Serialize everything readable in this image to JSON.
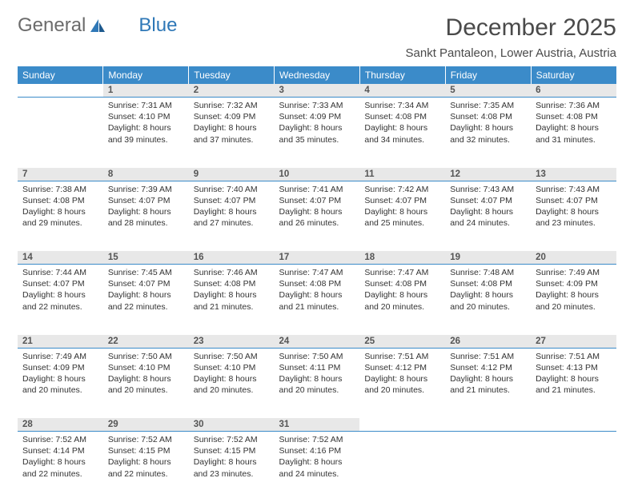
{
  "brand": {
    "part1": "General",
    "part2": "Blue"
  },
  "title": "December 2025",
  "subtitle": "Sankt Pantaleon, Lower Austria, Austria",
  "colors": {
    "header_bg": "#3b8bc9",
    "header_text": "#ffffff",
    "daynum_bg": "#e8e8e8",
    "divider": "#3b8bc9",
    "body_text": "#333333",
    "brand_gray": "#6b6b6b",
    "brand_blue": "#2f78b7"
  },
  "day_headers": [
    "Sunday",
    "Monday",
    "Tuesday",
    "Wednesday",
    "Thursday",
    "Friday",
    "Saturday"
  ],
  "weeks": [
    {
      "nums": [
        "",
        "1",
        "2",
        "3",
        "4",
        "5",
        "6"
      ],
      "cells": [
        null,
        {
          "sunrise": "Sunrise: 7:31 AM",
          "sunset": "Sunset: 4:10 PM",
          "daylight": "Daylight: 8 hours and 39 minutes."
        },
        {
          "sunrise": "Sunrise: 7:32 AM",
          "sunset": "Sunset: 4:09 PM",
          "daylight": "Daylight: 8 hours and 37 minutes."
        },
        {
          "sunrise": "Sunrise: 7:33 AM",
          "sunset": "Sunset: 4:09 PM",
          "daylight": "Daylight: 8 hours and 35 minutes."
        },
        {
          "sunrise": "Sunrise: 7:34 AM",
          "sunset": "Sunset: 4:08 PM",
          "daylight": "Daylight: 8 hours and 34 minutes."
        },
        {
          "sunrise": "Sunrise: 7:35 AM",
          "sunset": "Sunset: 4:08 PM",
          "daylight": "Daylight: 8 hours and 32 minutes."
        },
        {
          "sunrise": "Sunrise: 7:36 AM",
          "sunset": "Sunset: 4:08 PM",
          "daylight": "Daylight: 8 hours and 31 minutes."
        }
      ]
    },
    {
      "nums": [
        "7",
        "8",
        "9",
        "10",
        "11",
        "12",
        "13"
      ],
      "cells": [
        {
          "sunrise": "Sunrise: 7:38 AM",
          "sunset": "Sunset: 4:08 PM",
          "daylight": "Daylight: 8 hours and 29 minutes."
        },
        {
          "sunrise": "Sunrise: 7:39 AM",
          "sunset": "Sunset: 4:07 PM",
          "daylight": "Daylight: 8 hours and 28 minutes."
        },
        {
          "sunrise": "Sunrise: 7:40 AM",
          "sunset": "Sunset: 4:07 PM",
          "daylight": "Daylight: 8 hours and 27 minutes."
        },
        {
          "sunrise": "Sunrise: 7:41 AM",
          "sunset": "Sunset: 4:07 PM",
          "daylight": "Daylight: 8 hours and 26 minutes."
        },
        {
          "sunrise": "Sunrise: 7:42 AM",
          "sunset": "Sunset: 4:07 PM",
          "daylight": "Daylight: 8 hours and 25 minutes."
        },
        {
          "sunrise": "Sunrise: 7:43 AM",
          "sunset": "Sunset: 4:07 PM",
          "daylight": "Daylight: 8 hours and 24 minutes."
        },
        {
          "sunrise": "Sunrise: 7:43 AM",
          "sunset": "Sunset: 4:07 PM",
          "daylight": "Daylight: 8 hours and 23 minutes."
        }
      ]
    },
    {
      "nums": [
        "14",
        "15",
        "16",
        "17",
        "18",
        "19",
        "20"
      ],
      "cells": [
        {
          "sunrise": "Sunrise: 7:44 AM",
          "sunset": "Sunset: 4:07 PM",
          "daylight": "Daylight: 8 hours and 22 minutes."
        },
        {
          "sunrise": "Sunrise: 7:45 AM",
          "sunset": "Sunset: 4:07 PM",
          "daylight": "Daylight: 8 hours and 22 minutes."
        },
        {
          "sunrise": "Sunrise: 7:46 AM",
          "sunset": "Sunset: 4:08 PM",
          "daylight": "Daylight: 8 hours and 21 minutes."
        },
        {
          "sunrise": "Sunrise: 7:47 AM",
          "sunset": "Sunset: 4:08 PM",
          "daylight": "Daylight: 8 hours and 21 minutes."
        },
        {
          "sunrise": "Sunrise: 7:47 AM",
          "sunset": "Sunset: 4:08 PM",
          "daylight": "Daylight: 8 hours and 20 minutes."
        },
        {
          "sunrise": "Sunrise: 7:48 AM",
          "sunset": "Sunset: 4:08 PM",
          "daylight": "Daylight: 8 hours and 20 minutes."
        },
        {
          "sunrise": "Sunrise: 7:49 AM",
          "sunset": "Sunset: 4:09 PM",
          "daylight": "Daylight: 8 hours and 20 minutes."
        }
      ]
    },
    {
      "nums": [
        "21",
        "22",
        "23",
        "24",
        "25",
        "26",
        "27"
      ],
      "cells": [
        {
          "sunrise": "Sunrise: 7:49 AM",
          "sunset": "Sunset: 4:09 PM",
          "daylight": "Daylight: 8 hours and 20 minutes."
        },
        {
          "sunrise": "Sunrise: 7:50 AM",
          "sunset": "Sunset: 4:10 PM",
          "daylight": "Daylight: 8 hours and 20 minutes."
        },
        {
          "sunrise": "Sunrise: 7:50 AM",
          "sunset": "Sunset: 4:10 PM",
          "daylight": "Daylight: 8 hours and 20 minutes."
        },
        {
          "sunrise": "Sunrise: 7:50 AM",
          "sunset": "Sunset: 4:11 PM",
          "daylight": "Daylight: 8 hours and 20 minutes."
        },
        {
          "sunrise": "Sunrise: 7:51 AM",
          "sunset": "Sunset: 4:12 PM",
          "daylight": "Daylight: 8 hours and 20 minutes."
        },
        {
          "sunrise": "Sunrise: 7:51 AM",
          "sunset": "Sunset: 4:12 PM",
          "daylight": "Daylight: 8 hours and 21 minutes."
        },
        {
          "sunrise": "Sunrise: 7:51 AM",
          "sunset": "Sunset: 4:13 PM",
          "daylight": "Daylight: 8 hours and 21 minutes."
        }
      ]
    },
    {
      "nums": [
        "28",
        "29",
        "30",
        "31",
        "",
        "",
        ""
      ],
      "cells": [
        {
          "sunrise": "Sunrise: 7:52 AM",
          "sunset": "Sunset: 4:14 PM",
          "daylight": "Daylight: 8 hours and 22 minutes."
        },
        {
          "sunrise": "Sunrise: 7:52 AM",
          "sunset": "Sunset: 4:15 PM",
          "daylight": "Daylight: 8 hours and 22 minutes."
        },
        {
          "sunrise": "Sunrise: 7:52 AM",
          "sunset": "Sunset: 4:15 PM",
          "daylight": "Daylight: 8 hours and 23 minutes."
        },
        {
          "sunrise": "Sunrise: 7:52 AM",
          "sunset": "Sunset: 4:16 PM",
          "daylight": "Daylight: 8 hours and 24 minutes."
        },
        null,
        null,
        null
      ]
    }
  ]
}
